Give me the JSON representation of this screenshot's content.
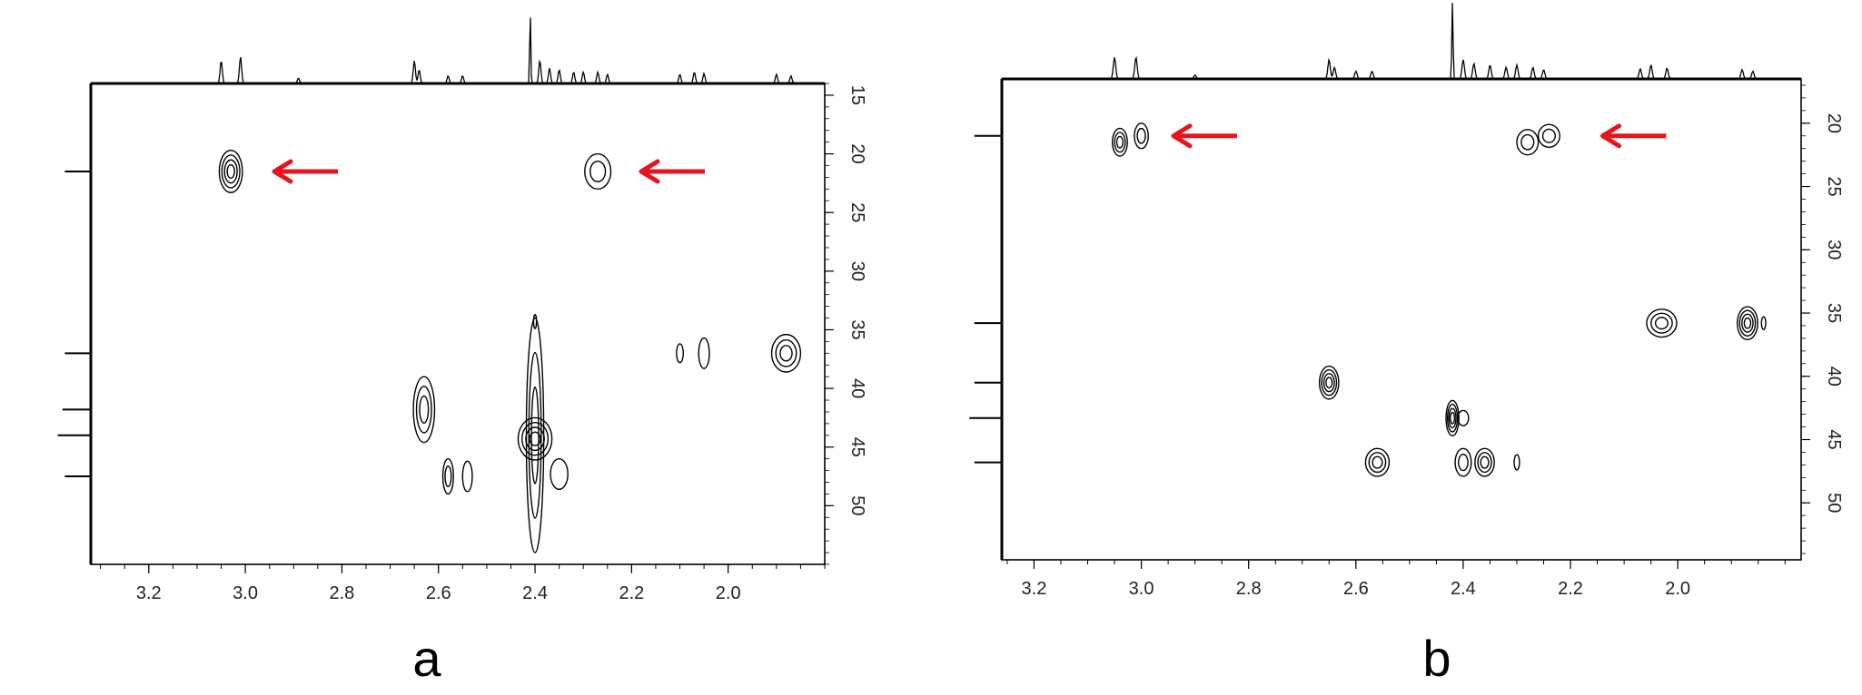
{
  "accent": {
    "arrow": "#e8141b",
    "line": "#000000"
  },
  "chart_data": [
    {
      "type": "scatter",
      "subtype": "2d-nmr-contour",
      "panel_label": "a",
      "x_ticks": [
        "3.2",
        "3.0",
        "2.8",
        "2.6",
        "2.4",
        "2.2",
        "2.0"
      ],
      "y_ticks": [
        "15",
        "20",
        "25",
        "30",
        "35",
        "40",
        "45",
        "50"
      ],
      "xlim": [
        3.32,
        1.8
      ],
      "ylim": [
        14.0,
        55.0
      ],
      "x_reversed": true,
      "y_axis_position": "right",
      "grid": false,
      "cross_peaks": [
        {
          "x": 3.03,
          "y": 21.5,
          "rx": 0.024,
          "ry": 1.8,
          "levels": 4,
          "emphasized": true
        },
        {
          "x": 2.27,
          "y": 21.5,
          "rx": 0.027,
          "ry": 1.5,
          "levels": 2,
          "emphasized": true
        },
        {
          "x": 2.63,
          "y": 41.8,
          "rx": 0.022,
          "ry": 2.8,
          "levels": 3,
          "emphasized": false
        },
        {
          "x": 2.4,
          "y": 44.3,
          "rx": 0.035,
          "ry": 1.8,
          "levels": 4,
          "emphasized": false
        },
        {
          "x": 2.4,
          "y": 44.0,
          "rx": 0.018,
          "ry": 10.0,
          "levels": 3,
          "emphasized": false
        },
        {
          "x": 2.35,
          "y": 47.3,
          "rx": 0.018,
          "ry": 1.3,
          "levels": 1,
          "emphasized": false
        },
        {
          "x": 2.58,
          "y": 47.5,
          "rx": 0.011,
          "ry": 1.5,
          "levels": 2,
          "emphasized": false
        },
        {
          "x": 2.54,
          "y": 47.5,
          "rx": 0.01,
          "ry": 1.3,
          "levels": 1,
          "emphasized": false
        },
        {
          "x": 2.1,
          "y": 37.0,
          "rx": 0.007,
          "ry": 0.8,
          "levels": 1,
          "emphasized": false
        },
        {
          "x": 2.05,
          "y": 37.0,
          "rx": 0.011,
          "ry": 1.3,
          "levels": 1,
          "emphasized": false
        },
        {
          "x": 1.88,
          "y": 37.0,
          "rx": 0.03,
          "ry": 1.6,
          "levels": 3,
          "emphasized": false
        },
        {
          "x": 2.4,
          "y": 34.3,
          "rx": 0.003,
          "ry": 0.6,
          "levels": 1,
          "emphasized": false
        }
      ],
      "h_projection_peaks": [
        {
          "x": 3.05,
          "h": 0.3
        },
        {
          "x": 3.01,
          "h": 0.35
        },
        {
          "x": 2.89,
          "h": 0.07
        },
        {
          "x": 2.65,
          "h": 0.3
        },
        {
          "x": 2.64,
          "h": 0.18
        },
        {
          "x": 2.58,
          "h": 0.1
        },
        {
          "x": 2.55,
          "h": 0.1
        },
        {
          "x": 2.41,
          "h": 0.95
        },
        {
          "x": 2.39,
          "h": 0.3
        },
        {
          "x": 2.37,
          "h": 0.2
        },
        {
          "x": 2.35,
          "h": 0.18
        },
        {
          "x": 2.32,
          "h": 0.15
        },
        {
          "x": 2.3,
          "h": 0.15
        },
        {
          "x": 2.27,
          "h": 0.15
        },
        {
          "x": 2.25,
          "h": 0.12
        },
        {
          "x": 2.1,
          "h": 0.12
        },
        {
          "x": 2.07,
          "h": 0.15
        },
        {
          "x": 2.05,
          "h": 0.13
        },
        {
          "x": 1.9,
          "h": 0.12
        },
        {
          "x": 1.87,
          "h": 0.1
        }
      ],
      "c_projection_peaks": [
        {
          "y": 21.5,
          "w": 0.55
        },
        {
          "y": 37.0,
          "w": 0.55
        },
        {
          "y": 41.8,
          "w": 0.6
        },
        {
          "y": 44.0,
          "w": 0.7
        },
        {
          "y": 47.5,
          "w": 0.55
        }
      ],
      "arrows": [
        {
          "x": 2.94,
          "y": 21.5,
          "direction": "left"
        },
        {
          "x": 2.18,
          "y": 21.5,
          "direction": "left"
        }
      ]
    },
    {
      "type": "scatter",
      "subtype": "2d-nmr-contour",
      "panel_label": "b",
      "x_ticks": [
        "3.2",
        "3.0",
        "2.8",
        "2.6",
        "2.4",
        "2.2",
        "2.0"
      ],
      "y_ticks": [
        "20",
        "25",
        "30",
        "35",
        "40",
        "45",
        "50"
      ],
      "xlim": [
        3.26,
        1.77
      ],
      "ylim": [
        16.5,
        54.5
      ],
      "x_reversed": true,
      "y_axis_position": "right",
      "grid": false,
      "cross_peaks": [
        {
          "x": 3.04,
          "y": 21.5,
          "rx": 0.014,
          "ry": 1.1,
          "levels": 3,
          "emphasized": true
        },
        {
          "x": 3.0,
          "y": 21.0,
          "rx": 0.013,
          "ry": 1.0,
          "levels": 2,
          "emphasized": true
        },
        {
          "x": 2.28,
          "y": 21.5,
          "rx": 0.02,
          "ry": 1.0,
          "levels": 2,
          "emphasized": true
        },
        {
          "x": 2.24,
          "y": 21.0,
          "rx": 0.02,
          "ry": 0.9,
          "levels": 2,
          "emphasized": true
        },
        {
          "x": 2.65,
          "y": 40.5,
          "rx": 0.018,
          "ry": 1.3,
          "levels": 4,
          "emphasized": false
        },
        {
          "x": 2.42,
          "y": 43.3,
          "rx": 0.012,
          "ry": 1.4,
          "levels": 4,
          "emphasized": false
        },
        {
          "x": 2.4,
          "y": 43.3,
          "rx": 0.01,
          "ry": 0.6,
          "levels": 1,
          "emphasized": false
        },
        {
          "x": 2.56,
          "y": 46.8,
          "rx": 0.022,
          "ry": 1.1,
          "levels": 3,
          "emphasized": false
        },
        {
          "x": 2.4,
          "y": 46.8,
          "rx": 0.015,
          "ry": 1.1,
          "levels": 2,
          "emphasized": false
        },
        {
          "x": 2.36,
          "y": 46.8,
          "rx": 0.018,
          "ry": 1.1,
          "levels": 3,
          "emphasized": false
        },
        {
          "x": 2.3,
          "y": 46.8,
          "rx": 0.005,
          "ry": 0.6,
          "levels": 1,
          "emphasized": false
        },
        {
          "x": 2.03,
          "y": 35.8,
          "rx": 0.028,
          "ry": 1.1,
          "levels": 3,
          "emphasized": false
        },
        {
          "x": 1.87,
          "y": 35.8,
          "rx": 0.019,
          "ry": 1.3,
          "levels": 4,
          "emphasized": false
        },
        {
          "x": 1.84,
          "y": 35.8,
          "rx": 0.004,
          "ry": 0.5,
          "levels": 1,
          "emphasized": false
        }
      ],
      "h_projection_peaks": [
        {
          "x": 3.05,
          "h": 0.28
        },
        {
          "x": 3.01,
          "h": 0.28
        },
        {
          "x": 2.9,
          "h": 0.05
        },
        {
          "x": 2.65,
          "h": 0.25
        },
        {
          "x": 2.64,
          "h": 0.15
        },
        {
          "x": 2.6,
          "h": 0.1
        },
        {
          "x": 2.57,
          "h": 0.1
        },
        {
          "x": 2.42,
          "h": 1.0
        },
        {
          "x": 2.4,
          "h": 0.25
        },
        {
          "x": 2.38,
          "h": 0.2
        },
        {
          "x": 2.35,
          "h": 0.18
        },
        {
          "x": 2.32,
          "h": 0.15
        },
        {
          "x": 2.3,
          "h": 0.18
        },
        {
          "x": 2.27,
          "h": 0.15
        },
        {
          "x": 2.25,
          "h": 0.12
        },
        {
          "x": 2.07,
          "h": 0.13
        },
        {
          "x": 2.05,
          "h": 0.18
        },
        {
          "x": 2.02,
          "h": 0.14
        },
        {
          "x": 1.88,
          "h": 0.12
        },
        {
          "x": 1.86,
          "h": 0.1
        }
      ],
      "c_projection_peaks": [
        {
          "y": 21.0,
          "w": 0.55
        },
        {
          "y": 35.8,
          "w": 0.55
        },
        {
          "y": 40.5,
          "w": 0.55
        },
        {
          "y": 43.3,
          "w": 0.65
        },
        {
          "y": 46.8,
          "w": 0.55
        }
      ],
      "arrows": [
        {
          "x": 2.94,
          "y": 21.0,
          "direction": "left"
        },
        {
          "x": 2.14,
          "y": 21.0,
          "direction": "left"
        }
      ]
    }
  ]
}
